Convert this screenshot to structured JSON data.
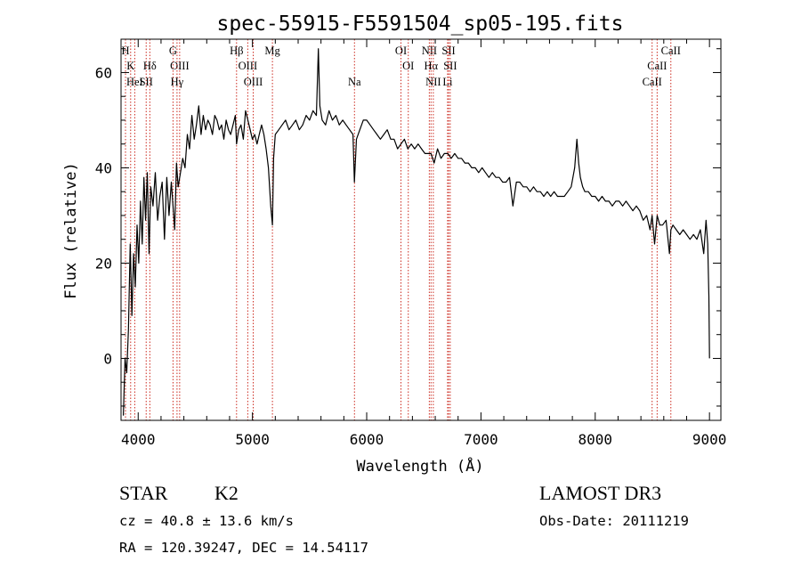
{
  "chart_data": {
    "type": "line",
    "title": "spec-55915-F5591504_sp05-195.fits",
    "xlabel": "Wavelength (Å)",
    "ylabel": "Flux (relative)",
    "xlim": [
      3850,
      9100
    ],
    "ylim": [
      -13,
      67
    ],
    "xticks": [
      4000,
      5000,
      6000,
      7000,
      8000,
      9000
    ],
    "yticks": [
      0,
      20,
      40,
      60
    ],
    "grid": false,
    "series": [
      {
        "name": "flux",
        "x": [
          3870,
          3885,
          3900,
          3915,
          3930,
          3945,
          3960,
          3975,
          3990,
          4005,
          4020,
          4035,
          4050,
          4065,
          4080,
          4095,
          4110,
          4130,
          4150,
          4170,
          4190,
          4210,
          4230,
          4250,
          4270,
          4290,
          4305,
          4320,
          4335,
          4350,
          4370,
          4390,
          4410,
          4430,
          4450,
          4470,
          4490,
          4510,
          4530,
          4550,
          4570,
          4590,
          4610,
          4630,
          4650,
          4670,
          4690,
          4710,
          4730,
          4750,
          4770,
          4790,
          4810,
          4830,
          4850,
          4861,
          4880,
          4900,
          4920,
          4940,
          4960,
          4980,
          5000,
          5020,
          5040,
          5060,
          5080,
          5100,
          5120,
          5140,
          5160,
          5175,
          5185,
          5200,
          5230,
          5260,
          5290,
          5320,
          5350,
          5380,
          5410,
          5440,
          5470,
          5500,
          5530,
          5560,
          5577,
          5590,
          5610,
          5640,
          5670,
          5700,
          5730,
          5760,
          5790,
          5820,
          5850,
          5880,
          5892,
          5910,
          5940,
          5970,
          6000,
          6030,
          6060,
          6090,
          6120,
          6150,
          6180,
          6210,
          6240,
          6270,
          6300,
          6330,
          6360,
          6390,
          6420,
          6450,
          6480,
          6510,
          6540,
          6563,
          6590,
          6620,
          6650,
          6680,
          6710,
          6740,
          6770,
          6800,
          6830,
          6860,
          6890,
          6920,
          6950,
          6980,
          7010,
          7040,
          7070,
          7100,
          7130,
          7160,
          7190,
          7220,
          7250,
          7280,
          7310,
          7340,
          7370,
          7400,
          7430,
          7460,
          7490,
          7520,
          7550,
          7580,
          7610,
          7640,
          7670,
          7700,
          7730,
          7760,
          7790,
          7820,
          7840,
          7855,
          7870,
          7890,
          7910,
          7940,
          7970,
          8000,
          8030,
          8060,
          8090,
          8120,
          8150,
          8180,
          8210,
          8240,
          8270,
          8300,
          8330,
          8360,
          8390,
          8420,
          8450,
          8480,
          8498,
          8520,
          8542,
          8565,
          8590,
          8620,
          8650,
          8662,
          8680,
          8710,
          8740,
          8770,
          8800,
          8830,
          8860,
          8890,
          8920,
          8950,
          8970,
          8985,
          8995,
          9000
        ],
        "values": [
          -12,
          0,
          -3,
          6,
          24,
          9,
          22,
          15,
          28,
          20,
          33,
          24,
          38,
          29,
          39,
          22,
          36,
          32,
          39,
          29,
          34,
          37,
          25,
          38,
          30,
          37,
          32,
          27,
          41,
          36,
          39,
          42,
          40,
          47,
          44,
          51,
          46,
          49,
          53,
          47,
          51,
          48,
          50,
          49,
          47,
          51,
          50,
          48,
          49,
          46,
          50,
          48,
          47,
          49,
          51,
          45,
          48,
          49,
          46,
          52,
          50,
          48,
          46,
          47,
          45,
          47,
          49,
          47,
          44,
          40,
          32,
          28,
          42,
          47,
          48,
          49,
          50,
          48,
          49,
          50,
          48,
          49,
          51,
          50,
          52,
          51,
          65,
          53,
          50,
          49,
          52,
          50,
          51,
          49,
          50,
          49,
          48,
          47,
          37,
          46,
          48,
          50,
          50,
          49,
          48,
          47,
          46,
          47,
          48,
          46,
          46,
          44,
          45,
          46,
          44,
          45,
          44,
          45,
          44,
          43,
          43,
          43,
          41,
          44,
          42,
          43,
          43,
          42,
          43,
          42,
          42,
          41,
          41,
          40,
          40,
          39,
          40,
          39,
          38,
          39,
          38,
          38,
          37,
          37,
          38,
          32,
          37,
          37,
          36,
          36,
          35,
          36,
          35,
          35,
          34,
          35,
          34,
          35,
          34,
          34,
          34,
          35,
          36,
          40,
          46,
          41,
          38,
          36,
          35,
          35,
          34,
          34,
          33,
          34,
          33,
          33,
          32,
          33,
          33,
          32,
          33,
          32,
          31,
          32,
          31,
          29,
          30,
          27,
          30,
          24,
          30,
          28,
          28,
          29,
          22,
          27,
          28,
          27,
          26,
          27,
          26,
          25,
          26,
          25,
          27,
          22,
          29,
          24,
          13,
          0
        ]
      }
    ],
    "line_markers": [
      {
        "label": "H",
        "x": 3889,
        "row": 0
      },
      {
        "label": "K",
        "x": 3934,
        "row": 1
      },
      {
        "label": "HeI",
        "x": 3970,
        "row": 2
      },
      {
        "label": "SII",
        "x": 4070,
        "row": 2
      },
      {
        "label": "Hδ",
        "x": 4102,
        "row": 1
      },
      {
        "label": "G",
        "x": 4305,
        "row": 0
      },
      {
        "label": "OIII",
        "x": 4363,
        "row": 1
      },
      {
        "label": "Hγ",
        "x": 4340,
        "row": 2
      },
      {
        "label": "Hβ",
        "x": 4861,
        "row": 0
      },
      {
        "label": "OIII",
        "x": 4959,
        "row": 1
      },
      {
        "label": "OIII",
        "x": 5007,
        "row": 2
      },
      {
        "label": "Mg",
        "x": 5175,
        "row": 0
      },
      {
        "label": "Na",
        "x": 5893,
        "row": 2
      },
      {
        "label": "OI",
        "x": 6300,
        "row": 0
      },
      {
        "label": "OI",
        "x": 6364,
        "row": 1
      },
      {
        "label": "NII",
        "x": 6548,
        "row": 0
      },
      {
        "label": "Hα",
        "x": 6563,
        "row": 1
      },
      {
        "label": "NII",
        "x": 6583,
        "row": 2
      },
      {
        "label": "SII",
        "x": 6717,
        "row": 0
      },
      {
        "label": "SII",
        "x": 6731,
        "row": 1
      },
      {
        "label": "Li",
        "x": 6708,
        "row": 2
      },
      {
        "label": "CaII",
        "x": 8662,
        "row": 0
      },
      {
        "label": "CaII",
        "x": 8542,
        "row": 1
      },
      {
        "label": "CaII",
        "x": 8498,
        "row": 2
      }
    ]
  },
  "info": {
    "class": "STAR",
    "subclass": "K2",
    "survey": "LAMOST DR3",
    "cz": "cz = 40.8 ± 13.6 km/s",
    "obs_date": "Obs-Date: 20111219",
    "coords": "RA = 120.39247, DEC =  14.54117"
  },
  "colors": {
    "line": "#000000",
    "marker": "#cc2a1f",
    "text": "#000000",
    "background": "#ffffff"
  }
}
